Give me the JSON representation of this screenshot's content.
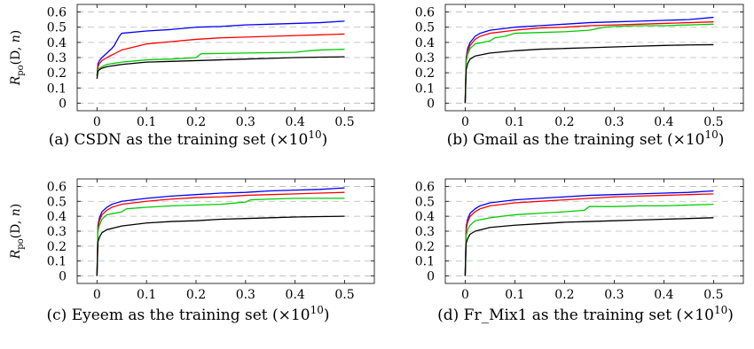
{
  "figure": {
    "ylabel": "R_po(D, n)"
  },
  "chart_data": [
    {
      "type": "line",
      "caption_prefix": "(a) CSDN as the training set (×10",
      "caption_exp": "10",
      "caption_suffix": ")",
      "xlim": [
        -0.04,
        0.56
      ],
      "ylim": [
        -0.05,
        0.65
      ],
      "xticks": [
        0,
        0.1,
        0.2,
        0.3,
        0.4,
        0.5
      ],
      "xtick_labels": [
        "0",
        "0.1",
        "0.2",
        "0.3",
        "0.4",
        "0.5"
      ],
      "yticks": [
        0,
        0.1,
        0.2,
        0.3,
        0.4,
        0.5,
        0.6
      ],
      "ytick_labels": [
        "0",
        "0.1",
        "0.2",
        "0.3",
        "0.4",
        "0.5",
        "0.6"
      ],
      "grid": "horizontal dashed",
      "series": [
        {
          "color": "#0000ff",
          "x": [
            0,
            0.002,
            0.005,
            0.01,
            0.02,
            0.03,
            0.035,
            0.04,
            0.045,
            0.05,
            0.1,
            0.15,
            0.2,
            0.25,
            0.3,
            0.35,
            0.4,
            0.45,
            0.5
          ],
          "y": [
            0.18,
            0.26,
            0.28,
            0.3,
            0.33,
            0.36,
            0.38,
            0.41,
            0.44,
            0.46,
            0.475,
            0.485,
            0.5,
            0.505,
            0.515,
            0.52,
            0.525,
            0.53,
            0.54
          ]
        },
        {
          "color": "#ff0000",
          "x": [
            0,
            0.002,
            0.005,
            0.01,
            0.02,
            0.05,
            0.1,
            0.15,
            0.2,
            0.25,
            0.3,
            0.35,
            0.4,
            0.45,
            0.5
          ],
          "y": [
            0.18,
            0.24,
            0.26,
            0.28,
            0.3,
            0.35,
            0.39,
            0.405,
            0.42,
            0.43,
            0.435,
            0.44,
            0.445,
            0.45,
            0.455
          ]
        },
        {
          "color": "#00cc00",
          "x": [
            0,
            0.002,
            0.005,
            0.01,
            0.02,
            0.05,
            0.1,
            0.15,
            0.2,
            0.21,
            0.3,
            0.4,
            0.43,
            0.45,
            0.5
          ],
          "y": [
            0.18,
            0.22,
            0.23,
            0.24,
            0.255,
            0.27,
            0.285,
            0.29,
            0.3,
            0.325,
            0.33,
            0.335,
            0.345,
            0.35,
            0.355
          ]
        },
        {
          "color": "#000000",
          "x": [
            0,
            0.002,
            0.005,
            0.01,
            0.02,
            0.05,
            0.1,
            0.15,
            0.2,
            0.25,
            0.3,
            0.35,
            0.4,
            0.45,
            0.5
          ],
          "y": [
            0.16,
            0.21,
            0.22,
            0.23,
            0.24,
            0.255,
            0.27,
            0.275,
            0.28,
            0.285,
            0.29,
            0.295,
            0.3,
            0.303,
            0.305
          ]
        }
      ]
    },
    {
      "type": "line",
      "caption_prefix": "(b) Gmail as the training set (×10",
      "caption_exp": "10",
      "caption_suffix": ")",
      "xlim": [
        -0.04,
        0.56
      ],
      "ylim": [
        -0.05,
        0.65
      ],
      "xticks": [
        0,
        0.1,
        0.2,
        0.3,
        0.4,
        0.5
      ],
      "xtick_labels": [
        "0",
        "0.1",
        "0.2",
        "0.3",
        "0.4",
        "0.5"
      ],
      "yticks": [
        0,
        0.1,
        0.2,
        0.3,
        0.4,
        0.5,
        0.6
      ],
      "ytick_labels": [
        "0",
        "0.1",
        "0.2",
        "0.3",
        "0.4",
        "0.5",
        "0.6"
      ],
      "grid": "horizontal dashed",
      "series": [
        {
          "color": "#0000ff",
          "x": [
            0,
            0.002,
            0.005,
            0.01,
            0.02,
            0.03,
            0.05,
            0.1,
            0.15,
            0.2,
            0.25,
            0.3,
            0.35,
            0.4,
            0.45,
            0.5
          ],
          "y": [
            0,
            0.3,
            0.36,
            0.4,
            0.44,
            0.46,
            0.48,
            0.5,
            0.51,
            0.52,
            0.53,
            0.535,
            0.54,
            0.545,
            0.55,
            0.565
          ]
        },
        {
          "color": "#ff0000",
          "x": [
            0,
            0.002,
            0.005,
            0.01,
            0.02,
            0.03,
            0.05,
            0.1,
            0.15,
            0.2,
            0.25,
            0.3,
            0.35,
            0.4,
            0.45,
            0.5
          ],
          "y": [
            0,
            0.29,
            0.34,
            0.38,
            0.42,
            0.44,
            0.46,
            0.48,
            0.495,
            0.5,
            0.51,
            0.515,
            0.52,
            0.525,
            0.53,
            0.535
          ]
        },
        {
          "color": "#00cc00",
          "x": [
            0,
            0.002,
            0.005,
            0.01,
            0.02,
            0.05,
            0.06,
            0.08,
            0.1,
            0.15,
            0.2,
            0.25,
            0.28,
            0.3,
            0.35,
            0.4,
            0.45,
            0.5
          ],
          "y": [
            0,
            0.27,
            0.32,
            0.36,
            0.39,
            0.41,
            0.43,
            0.44,
            0.46,
            0.465,
            0.47,
            0.48,
            0.5,
            0.505,
            0.51,
            0.51,
            0.515,
            0.52
          ]
        },
        {
          "color": "#000000",
          "x": [
            0,
            0.002,
            0.005,
            0.01,
            0.02,
            0.05,
            0.1,
            0.15,
            0.2,
            0.25,
            0.3,
            0.35,
            0.4,
            0.45,
            0.5
          ],
          "y": [
            0,
            0.22,
            0.26,
            0.29,
            0.31,
            0.33,
            0.345,
            0.355,
            0.36,
            0.365,
            0.37,
            0.375,
            0.38,
            0.383,
            0.385
          ]
        }
      ]
    },
    {
      "type": "line",
      "caption_prefix": "(c) Eyeem as the training set (×10",
      "caption_exp": "10",
      "caption_suffix": ")",
      "xlim": [
        -0.04,
        0.56
      ],
      "ylim": [
        -0.05,
        0.65
      ],
      "xticks": [
        0,
        0.1,
        0.2,
        0.3,
        0.4,
        0.5
      ],
      "xtick_labels": [
        "0",
        "0.1",
        "0.2",
        "0.3",
        "0.4",
        "0.5"
      ],
      "yticks": [
        0,
        0.1,
        0.2,
        0.3,
        0.4,
        0.5,
        0.6
      ],
      "ytick_labels": [
        "0",
        "0.1",
        "0.2",
        "0.3",
        "0.4",
        "0.5",
        "0.6"
      ],
      "grid": "horizontal dashed",
      "series": [
        {
          "color": "#0000ff",
          "x": [
            0,
            0.002,
            0.005,
            0.01,
            0.02,
            0.03,
            0.05,
            0.1,
            0.15,
            0.2,
            0.25,
            0.3,
            0.35,
            0.4,
            0.45,
            0.5
          ],
          "y": [
            0,
            0.34,
            0.39,
            0.43,
            0.46,
            0.48,
            0.5,
            0.52,
            0.535,
            0.545,
            0.555,
            0.56,
            0.57,
            0.575,
            0.58,
            0.59
          ]
        },
        {
          "color": "#ff0000",
          "x": [
            0,
            0.002,
            0.005,
            0.01,
            0.02,
            0.03,
            0.05,
            0.1,
            0.15,
            0.2,
            0.25,
            0.3,
            0.35,
            0.4,
            0.45,
            0.5
          ],
          "y": [
            0,
            0.32,
            0.37,
            0.41,
            0.44,
            0.46,
            0.48,
            0.5,
            0.515,
            0.525,
            0.53,
            0.54,
            0.545,
            0.55,
            0.555,
            0.56
          ]
        },
        {
          "color": "#00cc00",
          "x": [
            0,
            0.002,
            0.005,
            0.01,
            0.02,
            0.05,
            0.06,
            0.1,
            0.15,
            0.2,
            0.25,
            0.3,
            0.31,
            0.35,
            0.4,
            0.45,
            0.5
          ],
          "y": [
            0,
            0.3,
            0.34,
            0.38,
            0.41,
            0.43,
            0.45,
            0.46,
            0.47,
            0.475,
            0.48,
            0.495,
            0.51,
            0.515,
            0.52,
            0.52,
            0.52
          ]
        },
        {
          "color": "#000000",
          "x": [
            0,
            0.002,
            0.005,
            0.01,
            0.02,
            0.05,
            0.1,
            0.15,
            0.2,
            0.25,
            0.3,
            0.35,
            0.4,
            0.45,
            0.5
          ],
          "y": [
            0,
            0.23,
            0.26,
            0.29,
            0.31,
            0.335,
            0.355,
            0.365,
            0.37,
            0.38,
            0.385,
            0.39,
            0.395,
            0.398,
            0.4
          ]
        }
      ]
    },
    {
      "type": "line",
      "caption_prefix": "(d) Fr_Mix1 as the training set (×10",
      "caption_exp": "10",
      "caption_suffix": ")",
      "xlim": [
        -0.04,
        0.56
      ],
      "ylim": [
        -0.05,
        0.65
      ],
      "xticks": [
        0,
        0.1,
        0.2,
        0.3,
        0.4,
        0.5
      ],
      "xtick_labels": [
        "0",
        "0.1",
        "0.2",
        "0.3",
        "0.4",
        "0.5"
      ],
      "yticks": [
        0,
        0.1,
        0.2,
        0.3,
        0.4,
        0.5,
        0.6
      ],
      "ytick_labels": [
        "0",
        "0.1",
        "0.2",
        "0.3",
        "0.4",
        "0.5",
        "0.6"
      ],
      "grid": "horizontal dashed",
      "series": [
        {
          "color": "#0000ff",
          "x": [
            0,
            0.002,
            0.005,
            0.01,
            0.02,
            0.03,
            0.05,
            0.1,
            0.15,
            0.2,
            0.25,
            0.3,
            0.35,
            0.4,
            0.45,
            0.5
          ],
          "y": [
            0,
            0.33,
            0.38,
            0.42,
            0.45,
            0.47,
            0.49,
            0.51,
            0.52,
            0.53,
            0.54,
            0.545,
            0.55,
            0.555,
            0.56,
            0.57
          ]
        },
        {
          "color": "#ff0000",
          "x": [
            0,
            0.002,
            0.005,
            0.01,
            0.02,
            0.03,
            0.05,
            0.1,
            0.15,
            0.2,
            0.25,
            0.3,
            0.35,
            0.4,
            0.45,
            0.5
          ],
          "y": [
            0,
            0.31,
            0.36,
            0.4,
            0.43,
            0.45,
            0.47,
            0.49,
            0.5,
            0.51,
            0.52,
            0.53,
            0.535,
            0.54,
            0.545,
            0.55
          ]
        },
        {
          "color": "#00cc00",
          "x": [
            0,
            0.002,
            0.005,
            0.01,
            0.02,
            0.05,
            0.1,
            0.15,
            0.2,
            0.24,
            0.25,
            0.3,
            0.35,
            0.4,
            0.45,
            0.5
          ],
          "y": [
            0,
            0.27,
            0.31,
            0.34,
            0.37,
            0.39,
            0.41,
            0.42,
            0.43,
            0.44,
            0.465,
            0.465,
            0.47,
            0.47,
            0.475,
            0.48
          ]
        },
        {
          "color": "#000000",
          "x": [
            0,
            0.002,
            0.005,
            0.01,
            0.02,
            0.05,
            0.1,
            0.15,
            0.2,
            0.25,
            0.3,
            0.35,
            0.4,
            0.45,
            0.5
          ],
          "y": [
            0,
            0.22,
            0.25,
            0.28,
            0.3,
            0.325,
            0.34,
            0.35,
            0.36,
            0.365,
            0.37,
            0.375,
            0.38,
            0.385,
            0.39
          ]
        }
      ]
    }
  ]
}
